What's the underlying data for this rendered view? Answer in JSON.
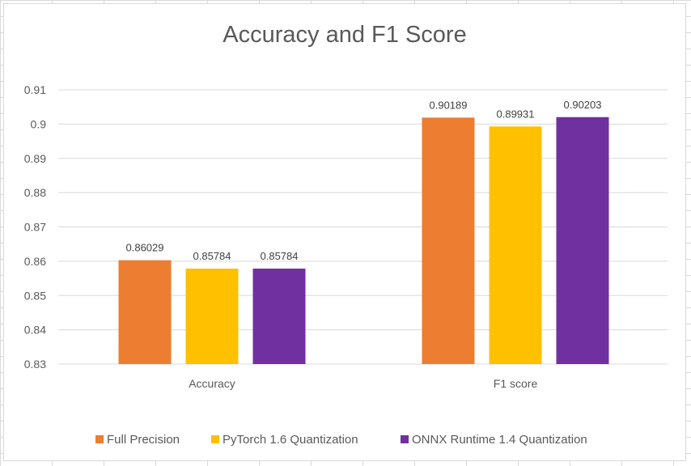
{
  "chart_data": {
    "type": "bar",
    "title": "Accuracy and F1 Score",
    "xlabel": "",
    "ylabel": "",
    "categories": [
      "Accuracy",
      "F1 score"
    ],
    "series": [
      {
        "name": "Full Precision",
        "values": [
          0.86029,
          0.90189
        ],
        "labels": [
          "0.86029",
          "0.90189"
        ],
        "color": "#ED7D31"
      },
      {
        "name": "PyTorch 1.6 Quantization",
        "values": [
          0.85784,
          0.89931
        ],
        "labels": [
          "0.85784",
          "0.89931"
        ],
        "color": "#FFC000"
      },
      {
        "name": "ONNX Runtime 1.4 Quantization",
        "values": [
          0.85784,
          0.90203
        ],
        "labels": [
          "0.85784",
          "0.90203"
        ],
        "color": "#7030A0"
      }
    ],
    "ylim": [
      0.83,
      0.91
    ],
    "yticks": [
      "0.83",
      "0.84",
      "0.85",
      "0.86",
      "0.87",
      "0.88",
      "0.89",
      "0.9",
      "0.91"
    ],
    "grid": true,
    "legend_position": "bottom"
  }
}
